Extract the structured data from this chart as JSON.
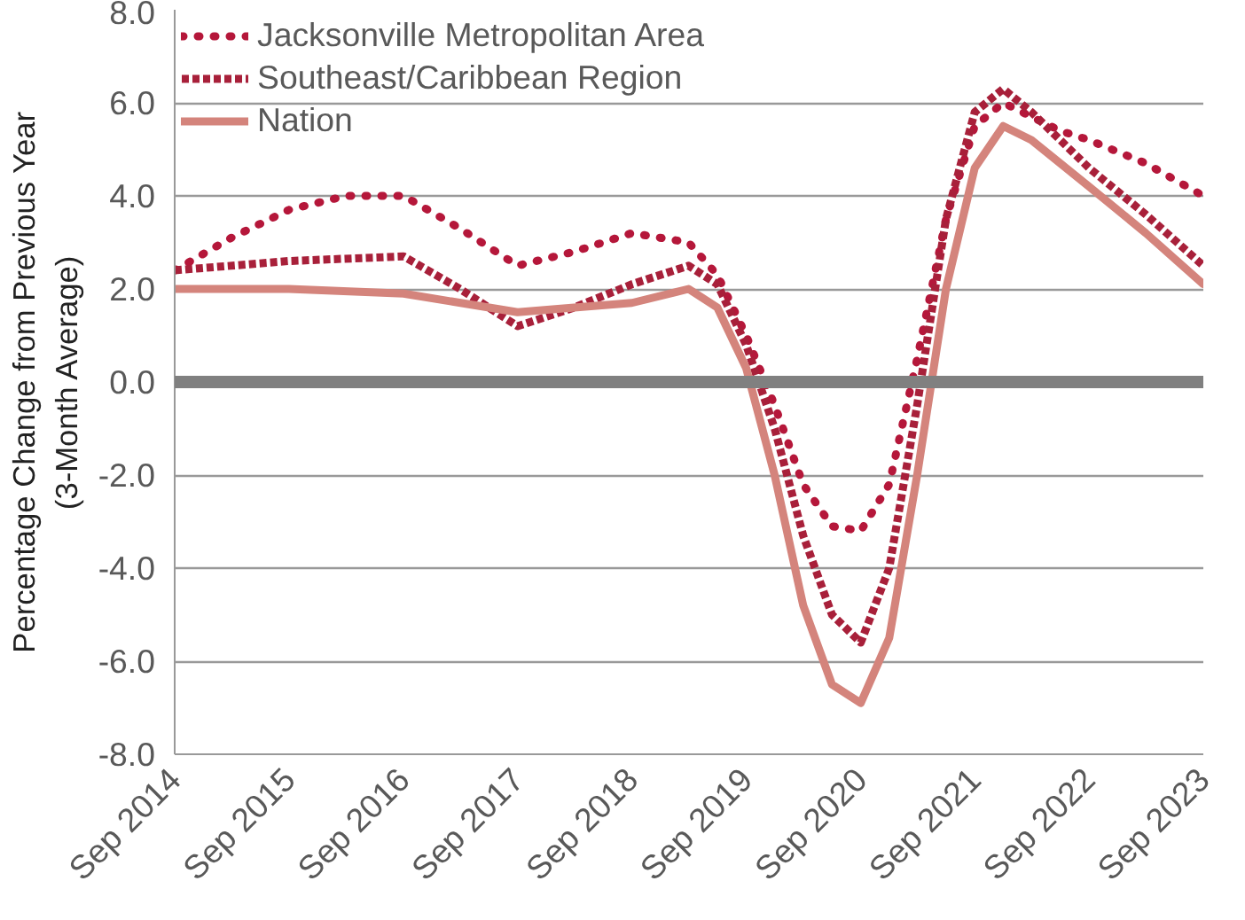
{
  "chart_data": {
    "type": "line",
    "ylabel": "Percentage Change from Previous Year\n(3-Month Average)",
    "xlim": [
      "2014-09",
      "2023-09"
    ],
    "xticks": [
      {
        "value": "2014-09",
        "label": "Sep 2014"
      },
      {
        "value": "2015-09",
        "label": "Sep 2015"
      },
      {
        "value": "2016-09",
        "label": "Sep 2016"
      },
      {
        "value": "2017-09",
        "label": "Sep 2017"
      },
      {
        "value": "2018-09",
        "label": "Sep 2018"
      },
      {
        "value": "2019-09",
        "label": "Sep 2019"
      },
      {
        "value": "2020-09",
        "label": "Sep 2020"
      },
      {
        "value": "2021-09",
        "label": "Sep 2021"
      },
      {
        "value": "2022-09",
        "label": "Sep 2022"
      },
      {
        "value": "2023-09",
        "label": "Sep 2023"
      }
    ],
    "ylim": [
      -8,
      8
    ],
    "yticks": [
      {
        "value": -8,
        "label": "-8.0"
      },
      {
        "value": -6,
        "label": "-6.0"
      },
      {
        "value": -4,
        "label": "-4.0"
      },
      {
        "value": -2,
        "label": "-2.0"
      },
      {
        "value": 0,
        "label": "0.0"
      },
      {
        "value": 2,
        "label": "2.0"
      },
      {
        "value": 4,
        "label": "4.0"
      },
      {
        "value": 6,
        "label": "6.0"
      },
      {
        "value": 8,
        "label": "8.0"
      }
    ],
    "grid": "y",
    "legend": "top",
    "ref_lines": [
      {
        "axis": "y",
        "value": 0,
        "color": "#808080"
      }
    ],
    "series": [
      {
        "name": "Jacksonville Metropolitan Area",
        "color": "#b5173a",
        "line_style": "dotted",
        "x": [
          "2014-09",
          "2015-03",
          "2015-09",
          "2016-03",
          "2016-09",
          "2017-03",
          "2017-09",
          "2018-03",
          "2018-09",
          "2019-03",
          "2019-06",
          "2019-09",
          "2019-12",
          "2020-03",
          "2020-06",
          "2020-09",
          "2020-12",
          "2021-03",
          "2021-06",
          "2021-09",
          "2021-12",
          "2022-03",
          "2022-06",
          "2022-09",
          "2023-03",
          "2023-09"
        ],
        "values": [
          2.4,
          3.1,
          3.7,
          4.0,
          4.0,
          3.3,
          2.5,
          2.8,
          3.2,
          3.0,
          2.3,
          1.0,
          -0.5,
          -2.2,
          -3.1,
          -3.2,
          -2.2,
          0.5,
          3.5,
          5.5,
          6.0,
          5.7,
          5.4,
          5.2,
          4.7,
          4.0
        ]
      },
      {
        "name": "Southeast/Caribbean Region",
        "color": "#a8203a",
        "line_style": "dashed",
        "x": [
          "2014-09",
          "2015-09",
          "2016-09",
          "2017-03",
          "2017-09",
          "2018-03",
          "2018-09",
          "2019-03",
          "2019-06",
          "2019-09",
          "2019-12",
          "2020-03",
          "2020-06",
          "2020-09",
          "2020-12",
          "2021-03",
          "2021-06",
          "2021-09",
          "2021-12",
          "2022-03",
          "2022-06",
          "2022-09",
          "2023-03",
          "2023-09"
        ],
        "values": [
          2.4,
          2.6,
          2.7,
          2.0,
          1.2,
          1.6,
          2.1,
          2.5,
          2.1,
          0.8,
          -1.0,
          -3.3,
          -5.0,
          -5.6,
          -4.0,
          -0.5,
          3.5,
          5.8,
          6.3,
          5.8,
          5.2,
          4.6,
          3.6,
          2.5
        ]
      },
      {
        "name": "Nation",
        "color": "#d4847c",
        "line_style": "solid",
        "x": [
          "2014-09",
          "2015-09",
          "2016-09",
          "2017-09",
          "2018-03",
          "2018-09",
          "2019-03",
          "2019-06",
          "2019-09",
          "2019-12",
          "2020-03",
          "2020-06",
          "2020-09",
          "2020-12",
          "2021-03",
          "2021-06",
          "2021-09",
          "2021-12",
          "2022-03",
          "2022-06",
          "2022-09",
          "2023-03",
          "2023-09"
        ],
        "values": [
          2.0,
          2.0,
          1.9,
          1.5,
          1.6,
          1.7,
          2.0,
          1.6,
          0.3,
          -2.0,
          -4.8,
          -6.5,
          -6.9,
          -5.5,
          -2.0,
          2.0,
          4.6,
          5.5,
          5.2,
          4.7,
          4.2,
          3.2,
          2.1
        ]
      }
    ]
  }
}
